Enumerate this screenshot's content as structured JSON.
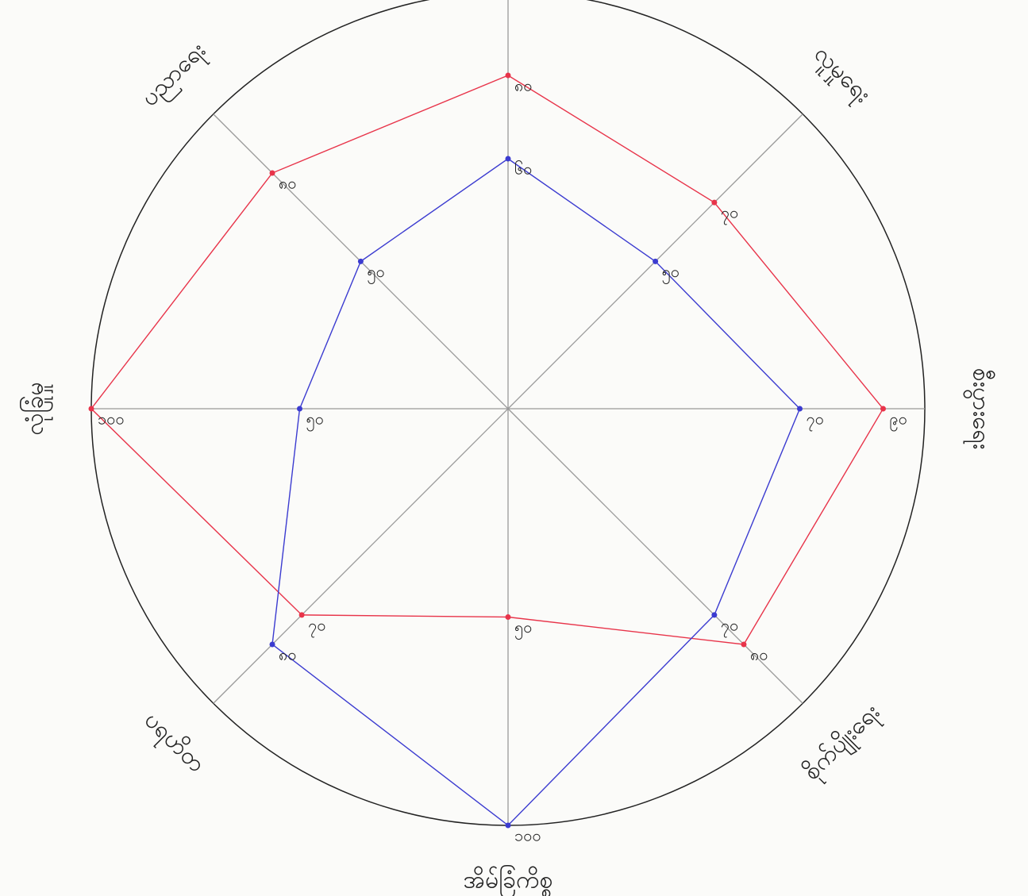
{
  "chart_data": {
    "type": "radar",
    "categories": [
      null,
      "လူမှုရေး",
      "စီးပွားရေး",
      "စိုက်ပျိုးရေး",
      "အိမ်ခြံကိစ္စ",
      "ပရဟိတ",
      "လုံခြုံမှု",
      "ပညာရေး"
    ],
    "rlim": [
      0,
      100
    ],
    "series": [
      {
        "color": "#e8344a",
        "values": [
          80,
          70,
          90,
          80,
          50,
          70,
          100,
          80
        ],
        "value_labels": [
          "၈၀",
          "၇၀",
          "၉၀",
          "၈၀",
          "၅၀",
          "၇၀",
          "၁၀၀",
          "၈၀"
        ]
      },
      {
        "color": "#3b3bd0",
        "values": [
          60,
          50,
          70,
          70,
          100,
          80,
          50,
          50
        ],
        "value_labels": [
          "၆၀",
          "၅၀",
          "၇၀",
          "၇၀",
          "၁၀၀",
          "၈၀",
          "၅၀",
          "၅၀"
        ]
      }
    ]
  }
}
